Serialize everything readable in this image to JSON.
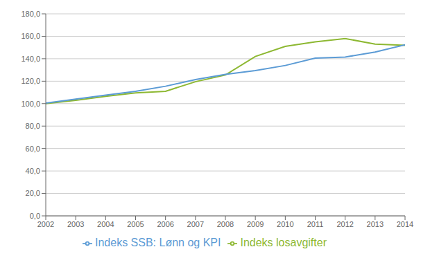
{
  "chart_data": {
    "type": "line",
    "x": [
      2002,
      2003,
      2004,
      2005,
      2006,
      2007,
      2008,
      2009,
      2010,
      2011,
      2012,
      2013,
      2014
    ],
    "series": [
      {
        "name": "Indeks losavgifter",
        "color": "#8db832",
        "values": [
          100.0,
          103.0,
          106.5,
          109.5,
          111.0,
          119.5,
          125.5,
          142.0,
          151.0,
          155.0,
          158.0,
          153.0,
          152.0
        ]
      },
      {
        "name": "Indeks SSB: Lønn og KPI",
        "color": "#5b9bd5",
        "values": [
          100.5,
          104.0,
          107.5,
          111.0,
          115.5,
          121.5,
          126.0,
          129.5,
          134.0,
          140.5,
          141.5,
          146.0,
          152.5
        ]
      }
    ],
    "xlim": [
      2002,
      2014
    ],
    "xticks": [
      2002,
      2003,
      2004,
      2005,
      2006,
      2007,
      2008,
      2009,
      2010,
      2011,
      2012,
      2013,
      2014
    ],
    "ylim": [
      0,
      180
    ],
    "yticks": [
      {
        "value": 0,
        "label": "0,0"
      },
      {
        "value": 20,
        "label": "20,0"
      },
      {
        "value": 40,
        "label": "40,0"
      },
      {
        "value": 60,
        "label": "60,0"
      },
      {
        "value": 80,
        "label": "80,0"
      },
      {
        "value": 100,
        "label": "100,0"
      },
      {
        "value": 120,
        "label": "120,0"
      },
      {
        "value": 140,
        "label": "140,0"
      },
      {
        "value": 160,
        "label": "160,0"
      },
      {
        "value": 180,
        "label": "180,0"
      }
    ],
    "grid": "y",
    "legend": "bottom"
  }
}
